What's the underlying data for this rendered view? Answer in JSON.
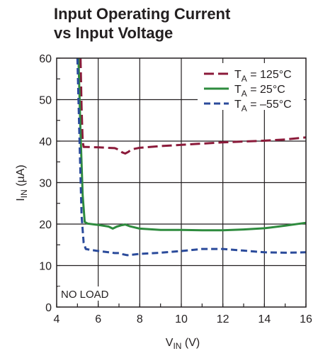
{
  "chart_data": {
    "type": "line",
    "title_lines": [
      "Input Operating Current",
      "vs Input Voltage"
    ],
    "xlabel": {
      "main": "V",
      "sub": "IN",
      "unit": " (V)"
    },
    "ylabel": {
      "main": "I",
      "sub": "IN",
      "unit": " (µA)"
    },
    "xlim": [
      4,
      16
    ],
    "ylim": [
      0,
      60
    ],
    "xticks": [
      4,
      6,
      8,
      10,
      12,
      14,
      16
    ],
    "yticks": [
      0,
      10,
      20,
      30,
      40,
      50,
      60
    ],
    "x_minor_step": 1,
    "y_minor_step": 5,
    "grid": true,
    "legend_position": "top-right",
    "annotation": "NO LOAD",
    "series": [
      {
        "name": "T",
        "name_sub": "A",
        "name_rest": " = 125°C",
        "color": "#8b1a3a",
        "style": "dashed",
        "x": [
          5.15,
          5.2,
          5.25,
          5.3,
          5.4,
          6.0,
          6.8,
          7.0,
          7.15,
          7.3,
          7.45,
          7.6,
          8.0,
          9.0,
          10.0,
          11.0,
          12.0,
          13.0,
          14.0,
          15.0,
          16.0
        ],
        "y": [
          60,
          48,
          40,
          38.6,
          38.6,
          38.5,
          38.3,
          37.9,
          37.3,
          37.0,
          37.4,
          38.0,
          38.4,
          38.8,
          39.1,
          39.4,
          39.7,
          39.9,
          40.1,
          40.4,
          40.9
        ]
      },
      {
        "name": "T",
        "name_sub": "A",
        "name_rest": " = 25°C",
        "color": "#2e8b3e",
        "style": "solid",
        "x": [
          5.05,
          5.15,
          5.25,
          5.35,
          5.5,
          6.0,
          6.5,
          6.7,
          6.9,
          7.1,
          7.3,
          7.5,
          8.0,
          9.0,
          10.0,
          11.0,
          12.0,
          13.0,
          14.0,
          15.0,
          16.0
        ],
        "y": [
          60,
          42,
          27,
          20.5,
          20.1,
          19.8,
          19.4,
          18.9,
          19.4,
          19.7,
          19.9,
          19.5,
          18.9,
          18.6,
          18.6,
          18.5,
          18.5,
          18.7,
          19.0,
          19.6,
          20.3
        ]
      },
      {
        "name": "T",
        "name_sub": "A",
        "name_rest": " = –55°C",
        "color": "#2b4b9b",
        "style": "dashed",
        "x": [
          5.0,
          5.1,
          5.2,
          5.3,
          5.4,
          5.6,
          6.0,
          6.5,
          6.8,
          7.0,
          7.2,
          7.4,
          7.6,
          8.0,
          9.0,
          10.0,
          11.0,
          12.0,
          13.0,
          14.0,
          15.0,
          16.0
        ],
        "y": [
          60,
          40,
          22,
          15.5,
          14.0,
          13.8,
          13.5,
          13.2,
          13.0,
          13.0,
          12.7,
          12.5,
          12.6,
          12.8,
          13.1,
          13.5,
          14.0,
          14.0,
          13.6,
          13.2,
          13.1,
          13.2
        ]
      }
    ]
  }
}
